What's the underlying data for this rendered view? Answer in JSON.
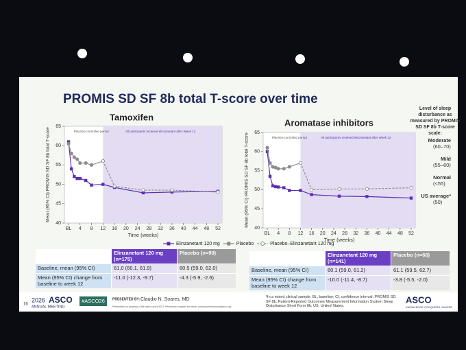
{
  "slide_title": "PROMIS SD SF 8b total T-score over time",
  "chart_data": [
    {
      "type": "line",
      "title": "Tamoxifen",
      "xlabel": "Time (weeks)",
      "ylabel": "Mean (95% CI) PROMIS SD SF 8b total T-score",
      "annotations": [
        "Placebo-controlled period",
        "All participants received elinzanetant after Week 12"
      ],
      "x": [
        0,
        1,
        2,
        3,
        4,
        6,
        8,
        12,
        16,
        26,
        36,
        52
      ],
      "xlim": [
        0,
        52
      ],
      "ylim": [
        40,
        65
      ],
      "xticks": [
        {
          "value": 0,
          "label": "BL"
        },
        4,
        8,
        12,
        16,
        20,
        24,
        28,
        32,
        36,
        40,
        44,
        48,
        52
      ],
      "yticks": [
        40,
        45,
        50,
        55,
        60,
        65
      ],
      "series": [
        {
          "name": "Elinzanetant 120 mg",
          "color": "#5b2fb0",
          "marker": "square",
          "values": [
            61,
            54,
            52,
            51.5,
            51.5,
            51,
            49.8,
            50,
            49.2,
            47.8,
            48,
            48.2
          ]
        },
        {
          "name": "Placebo",
          "color": "#8c8c8c",
          "marker": "circle",
          "values": [
            60.5,
            58,
            57,
            56.5,
            55.5,
            55.5,
            55,
            56,
            null,
            null,
            null,
            null
          ]
        },
        {
          "name": "Placebo–Elinzanetant 120 mg",
          "color": "#8c8c8c",
          "marker": "open-circle",
          "dashed": true,
          "values": [
            null,
            null,
            null,
            null,
            null,
            null,
            null,
            56,
            49.5,
            48.5,
            48.5,
            48
          ]
        }
      ],
      "legend": "bottom"
    },
    {
      "type": "line",
      "title": "Aromatase inhibitors",
      "xlabel": "Time (weeks)",
      "ylabel": "Mean (95% CI) PROMIS SD SF 8b total T-score",
      "annotations": [
        "Placebo-controlled period",
        "All participants received elinzanetant after Week 12"
      ],
      "x": [
        0,
        1,
        2,
        3,
        4,
        6,
        8,
        12,
        16,
        26,
        36,
        52
      ],
      "xlim": [
        0,
        52
      ],
      "ylim": [
        40,
        65
      ],
      "xticks": [
        {
          "value": 0,
          "label": "BL"
        },
        4,
        8,
        12,
        16,
        20,
        24,
        28,
        32,
        36,
        40,
        44,
        48,
        52
      ],
      "yticks": [
        40,
        45,
        50,
        55,
        60,
        65
      ],
      "series": [
        {
          "color": "#5b2fb0",
          "marker": "square",
          "values": [
            60,
            53.5,
            51,
            50.8,
            50.7,
            50.5,
            49.8,
            49.8,
            48.7,
            48.3,
            48.2,
            47.8
          ]
        },
        {
          "color": "#8c8c8c",
          "marker": "circle",
          "values": [
            61,
            57,
            56,
            55.8,
            55.5,
            55.5,
            56,
            57,
            null,
            null,
            null,
            null
          ]
        },
        {
          "color": "#8c8c8c",
          "marker": "open-circle",
          "dashed": true,
          "values": [
            null,
            null,
            null,
            null,
            null,
            null,
            null,
            57,
            50,
            50.2,
            50.2,
            50.5
          ]
        }
      ]
    }
  ],
  "scale_title": "Level of sleep disturbance as measured by PROMIS SD SF 8b T-score scale:",
  "scale_levels": [
    {
      "name": "Moderate",
      "range": "(60–70)"
    },
    {
      "name": "Mild",
      "range": "(55–60)"
    },
    {
      "name": "Normal",
      "range": "(<55)"
    },
    {
      "name": "US averageª",
      "range": "(50)"
    }
  ],
  "tables": [
    {
      "header": [
        "Elinzanetant 120 mg (n=175)",
        "Placebo (n=90)"
      ],
      "rows": [
        [
          "Baseline, mean (95% CI)",
          "61.0 (60.1, 61.9)",
          "60.5 (59.0, 62.0)"
        ],
        [
          "Mean (95% CI) change from baseline to week 12",
          "-11.0 (-12.3, -9.7)",
          "-4.3 (-5.9, -2.6)"
        ]
      ]
    },
    {
      "header": [
        "Elinzanetant 120 mg (n=141)",
        "Placebo (n=68)"
      ],
      "rows": [
        [
          "Baseline, mean (95% CI)",
          "60.1 (59.0, 61.2)",
          "61.1 (59.5, 62.7)"
        ],
        [
          "Mean (95% CI) change from baseline to week 12",
          "-10.0 (-11.4, -8.7)",
          "-3.8 (-5.5, -2.0)"
        ]
      ]
    }
  ],
  "footer": {
    "page": "16",
    "meeting_year": "2026",
    "meeting": "ASCO",
    "meeting_sub": "ANNUAL MEETING",
    "hashtag": "#ASCO26",
    "presented_by": "PRESENTED BY:",
    "presenter": "Claudio N. Soares, MD",
    "notice": "Presentation is property of the author and ASCO. Permission required for reuse; contact permissions@asco.org.",
    "footnote": "ªIn a mixed clinical sample. BL, baseline; CI, confidence interval; PROMIS SD SF 8b, Patient-Reported Outcomes Measurement Information System Sleep Disturbance Short Form 8b; US, United States.",
    "brand": "ASCO",
    "brand_sub": "KNOWLEDGE CONQUERS CANCER"
  }
}
